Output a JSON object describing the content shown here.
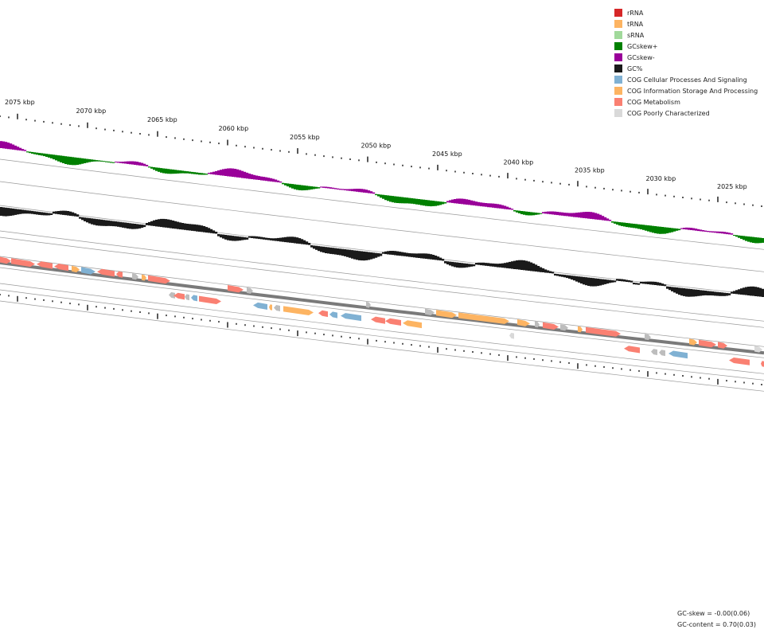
{
  "legend": [
    {
      "label": "rRNA",
      "color": "#d62728"
    },
    {
      "label": "tRNA",
      "color": "#fdb462"
    },
    {
      "label": "sRNA",
      "color": "#a1d99b"
    },
    {
      "label": "GCskew+",
      "color": "#008000"
    },
    {
      "label": "GCskew-",
      "color": "#990099"
    },
    {
      "label": "GC%",
      "color": "#1a1a1a"
    },
    {
      "label": "COG Cellular Processes And Signaling",
      "color": "#80b1d3"
    },
    {
      "label": "COG Information Storage And Processing",
      "color": "#fdb462"
    },
    {
      "label": "COG Metabolism",
      "color": "#fa8072"
    },
    {
      "label": "COG Poorly Characterized",
      "color": "#d9d9d9"
    }
  ],
  "stats": {
    "gc_skew": "GC-skew = -0.00(0.06)",
    "gc_content": "GC-content = 0.70(0.03)"
  },
  "axis": {
    "ticks": [
      "2075 kbp",
      "2070 kbp",
      "2065 kbp",
      "2060 kbp",
      "2055 kbp",
      "2050 kbp",
      "2045 kbp",
      "2040 kbp",
      "2035 kbp",
      "2030 kbp",
      "2025 kbp"
    ]
  },
  "colors": {
    "cog_info": "#fdb462",
    "cog_cell": "#80b1d3",
    "cog_metab": "#fa8072",
    "cog_poor": "#bdbdbd",
    "cog_poor_light": "#d9d9d9"
  }
}
